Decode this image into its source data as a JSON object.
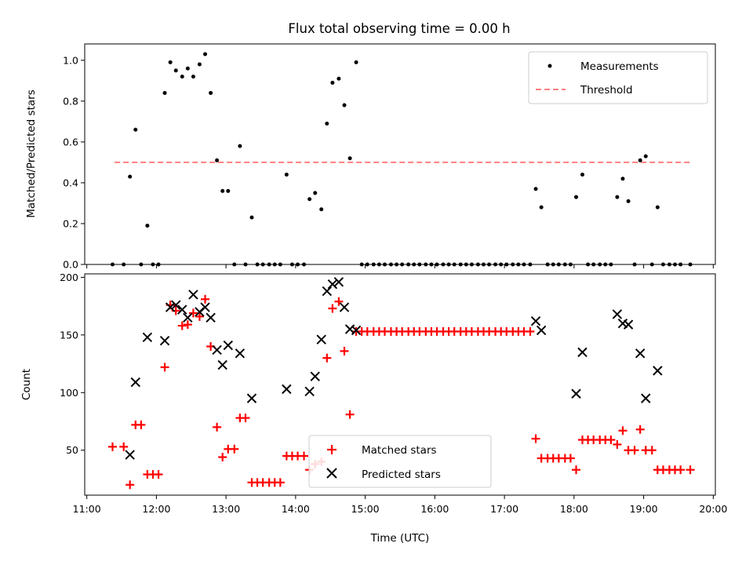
{
  "chart_data": [
    {
      "type": "scatter",
      "title": "Flux total observing time = 0.00 h",
      "ylabel": "Matched/Predicted stars",
      "ylim": [
        0,
        1.08
      ],
      "yticks": [
        0.0,
        0.2,
        0.4,
        0.6,
        0.8,
        1.0
      ],
      "ytick_labels": [
        "0.0",
        "0.2",
        "0.4",
        "0.6",
        "0.8",
        "1.0"
      ],
      "threshold": {
        "name": "Threshold",
        "value": 0.5,
        "x_start": 11.4,
        "x_end": 19.67,
        "color": "#ff7f7f"
      },
      "legend": {
        "position": "upper right",
        "entries": [
          "Measurements",
          "Threshold"
        ]
      },
      "series": [
        {
          "name": "Measurements",
          "color": "#000000",
          "marker": "dot",
          "points": [
            [
              11.37,
              0
            ],
            [
              11.53,
              0
            ],
            [
              11.62,
              0.43
            ],
            [
              11.7,
              0.66
            ],
            [
              11.78,
              0
            ],
            [
              11.87,
              0.19
            ],
            [
              11.95,
              0
            ],
            [
              12.03,
              0
            ],
            [
              12.12,
              0.84
            ],
            [
              12.2,
              0.99
            ],
            [
              12.28,
              0.95
            ],
            [
              12.37,
              0.92
            ],
            [
              12.45,
              0.96
            ],
            [
              12.53,
              0.92
            ],
            [
              12.62,
              0.98
            ],
            [
              12.7,
              1.03
            ],
            [
              12.78,
              0.84
            ],
            [
              12.87,
              0.51
            ],
            [
              12.95,
              0.36
            ],
            [
              13.03,
              0.36
            ],
            [
              13.12,
              0
            ],
            [
              13.2,
              0.58
            ],
            [
              13.28,
              0
            ],
            [
              13.37,
              0.23
            ],
            [
              13.45,
              0
            ],
            [
              13.53,
              0
            ],
            [
              13.62,
              0
            ],
            [
              13.7,
              0
            ],
            [
              13.78,
              0
            ],
            [
              13.87,
              0.44
            ],
            [
              13.95,
              0
            ],
            [
              14.03,
              0
            ],
            [
              14.12,
              0
            ],
            [
              14.2,
              0.32
            ],
            [
              14.28,
              0.35
            ],
            [
              14.37,
              0.27
            ],
            [
              14.45,
              0.69
            ],
            [
              14.53,
              0.89
            ],
            [
              14.62,
              0.91
            ],
            [
              14.7,
              0.78
            ],
            [
              14.78,
              0.52
            ],
            [
              14.87,
              0.99
            ],
            [
              14.95,
              0
            ],
            [
              15.03,
              0
            ],
            [
              15.12,
              0
            ],
            [
              15.2,
              0
            ],
            [
              15.28,
              0
            ],
            [
              15.37,
              0
            ],
            [
              15.45,
              0
            ],
            [
              15.53,
              0
            ],
            [
              15.62,
              0
            ],
            [
              15.7,
              0
            ],
            [
              15.78,
              0
            ],
            [
              15.87,
              0
            ],
            [
              15.95,
              0
            ],
            [
              16.03,
              0
            ],
            [
              16.12,
              0
            ],
            [
              16.2,
              0
            ],
            [
              16.28,
              0
            ],
            [
              16.37,
              0
            ],
            [
              16.45,
              0
            ],
            [
              16.53,
              0
            ],
            [
              16.62,
              0
            ],
            [
              16.7,
              0
            ],
            [
              16.78,
              0
            ],
            [
              16.87,
              0
            ],
            [
              16.95,
              0
            ],
            [
              17.03,
              0
            ],
            [
              17.12,
              0
            ],
            [
              17.2,
              0
            ],
            [
              17.28,
              0
            ],
            [
              17.37,
              0
            ],
            [
              17.45,
              0.37
            ],
            [
              17.53,
              0.28
            ],
            [
              17.62,
              0
            ],
            [
              17.7,
              0
            ],
            [
              17.78,
              0
            ],
            [
              17.87,
              0
            ],
            [
              17.95,
              0
            ],
            [
              18.03,
              0.33
            ],
            [
              18.12,
              0.44
            ],
            [
              18.2,
              0
            ],
            [
              18.28,
              0
            ],
            [
              18.37,
              0
            ],
            [
              18.45,
              0
            ],
            [
              18.53,
              0
            ],
            [
              18.62,
              0.33
            ],
            [
              18.7,
              0.42
            ],
            [
              18.78,
              0.31
            ],
            [
              18.87,
              0
            ],
            [
              18.95,
              0.51
            ],
            [
              19.03,
              0.53
            ],
            [
              19.12,
              0
            ],
            [
              19.2,
              0.28
            ],
            [
              19.28,
              0
            ],
            [
              19.37,
              0
            ],
            [
              19.45,
              0
            ],
            [
              19.53,
              0
            ],
            [
              19.67,
              0
            ]
          ]
        }
      ]
    },
    {
      "type": "scatter",
      "xlabel": "Time (UTC)",
      "ylabel": "Count",
      "ylim": [
        11,
        203
      ],
      "yticks": [
        50,
        100,
        150,
        200
      ],
      "ytick_labels": [
        "50",
        "100",
        "150",
        "200"
      ],
      "xlim": [
        10.97,
        20.03
      ],
      "xticks": [
        11,
        12,
        13,
        14,
        15,
        16,
        17,
        18,
        19,
        20
      ],
      "xtick_labels": [
        "11:00",
        "12:00",
        "13:00",
        "14:00",
        "15:00",
        "16:00",
        "17:00",
        "18:00",
        "19:00",
        "20:00"
      ],
      "legend": {
        "position": "lower center",
        "entries": [
          "Matched stars",
          "Predicted stars"
        ]
      },
      "series": [
        {
          "name": "Matched stars",
          "color": "#ff0000",
          "marker": "plus",
          "points": [
            [
              11.37,
              53
            ],
            [
              11.53,
              53
            ],
            [
              11.62,
              20
            ],
            [
              11.7,
              72
            ],
            [
              11.78,
              72
            ],
            [
              11.87,
              29
            ],
            [
              11.95,
              29
            ],
            [
              12.03,
              29
            ],
            [
              12.12,
              122
            ],
            [
              12.2,
              176
            ],
            [
              12.28,
              171
            ],
            [
              12.37,
              158
            ],
            [
              12.45,
              159
            ],
            [
              12.53,
              169
            ],
            [
              12.62,
              166
            ],
            [
              12.7,
              181
            ],
            [
              12.78,
              140
            ],
            [
              12.87,
              70
            ],
            [
              12.95,
              44
            ],
            [
              13.03,
              51
            ],
            [
              13.12,
              51
            ],
            [
              13.2,
              78
            ],
            [
              13.28,
              78
            ],
            [
              13.37,
              22
            ],
            [
              13.45,
              22
            ],
            [
              13.53,
              22
            ],
            [
              13.62,
              22
            ],
            [
              13.7,
              22
            ],
            [
              13.78,
              22
            ],
            [
              13.87,
              45
            ],
            [
              13.95,
              45
            ],
            [
              14.03,
              45
            ],
            [
              14.12,
              45
            ],
            [
              14.2,
              33
            ],
            [
              14.28,
              38
            ],
            [
              14.37,
              40
            ],
            [
              14.45,
              130
            ],
            [
              14.53,
              173
            ],
            [
              14.62,
              179
            ],
            [
              14.7,
              136
            ],
            [
              14.78,
              81
            ],
            [
              14.87,
              153
            ],
            [
              14.95,
              153
            ],
            [
              15.03,
              153
            ],
            [
              15.12,
              153
            ],
            [
              15.2,
              153
            ],
            [
              15.28,
              153
            ],
            [
              15.37,
              153
            ],
            [
              15.45,
              153
            ],
            [
              15.53,
              153
            ],
            [
              15.62,
              153
            ],
            [
              15.7,
              153
            ],
            [
              15.78,
              153
            ],
            [
              15.87,
              153
            ],
            [
              15.95,
              153
            ],
            [
              16.03,
              153
            ],
            [
              16.12,
              153
            ],
            [
              16.2,
              153
            ],
            [
              16.28,
              153
            ],
            [
              16.37,
              153
            ],
            [
              16.45,
              153
            ],
            [
              16.53,
              153
            ],
            [
              16.62,
              153
            ],
            [
              16.7,
              153
            ],
            [
              16.78,
              153
            ],
            [
              16.87,
              153
            ],
            [
              16.95,
              153
            ],
            [
              17.03,
              153
            ],
            [
              17.12,
              153
            ],
            [
              17.2,
              153
            ],
            [
              17.28,
              153
            ],
            [
              17.37,
              153
            ],
            [
              17.45,
              60
            ],
            [
              17.53,
              43
            ],
            [
              17.62,
              43
            ],
            [
              17.7,
              43
            ],
            [
              17.78,
              43
            ],
            [
              17.87,
              43
            ],
            [
              17.95,
              43
            ],
            [
              18.03,
              33
            ],
            [
              18.12,
              59
            ],
            [
              18.2,
              59
            ],
            [
              18.28,
              59
            ],
            [
              18.37,
              59
            ],
            [
              18.45,
              59
            ],
            [
              18.53,
              59
            ],
            [
              18.62,
              55
            ],
            [
              18.7,
              67
            ],
            [
              18.78,
              50
            ],
            [
              18.87,
              50
            ],
            [
              18.95,
              68
            ],
            [
              19.03,
              50
            ],
            [
              19.12,
              50
            ],
            [
              19.2,
              33
            ],
            [
              19.28,
              33
            ],
            [
              19.37,
              33
            ],
            [
              19.45,
              33
            ],
            [
              19.53,
              33
            ],
            [
              19.67,
              33
            ]
          ]
        },
        {
          "name": "Predicted stars",
          "color": "#000000",
          "marker": "x",
          "points": [
            [
              11.62,
              46
            ],
            [
              11.7,
              109
            ],
            [
              11.87,
              148
            ],
            [
              12.12,
              145
            ],
            [
              12.2,
              174
            ],
            [
              12.28,
              176
            ],
            [
              12.37,
              172
            ],
            [
              12.45,
              165
            ],
            [
              12.53,
              185
            ],
            [
              12.62,
              170
            ],
            [
              12.7,
              174
            ],
            [
              12.78,
              165
            ],
            [
              12.87,
              137
            ],
            [
              12.95,
              124
            ],
            [
              13.03,
              141
            ],
            [
              13.2,
              134
            ],
            [
              13.37,
              95
            ],
            [
              13.87,
              103
            ],
            [
              14.2,
              101
            ],
            [
              14.28,
              114
            ],
            [
              14.37,
              146
            ],
            [
              14.45,
              188
            ],
            [
              14.53,
              194
            ],
            [
              14.62,
              196
            ],
            [
              14.7,
              174
            ],
            [
              14.78,
              155
            ],
            [
              14.87,
              154
            ],
            [
              17.45,
              162
            ],
            [
              17.53,
              154
            ],
            [
              18.03,
              99
            ],
            [
              18.12,
              135
            ],
            [
              18.62,
              168
            ],
            [
              18.7,
              160
            ],
            [
              18.78,
              159
            ],
            [
              18.95,
              134
            ],
            [
              19.03,
              95
            ],
            [
              19.2,
              119
            ]
          ]
        }
      ]
    }
  ]
}
